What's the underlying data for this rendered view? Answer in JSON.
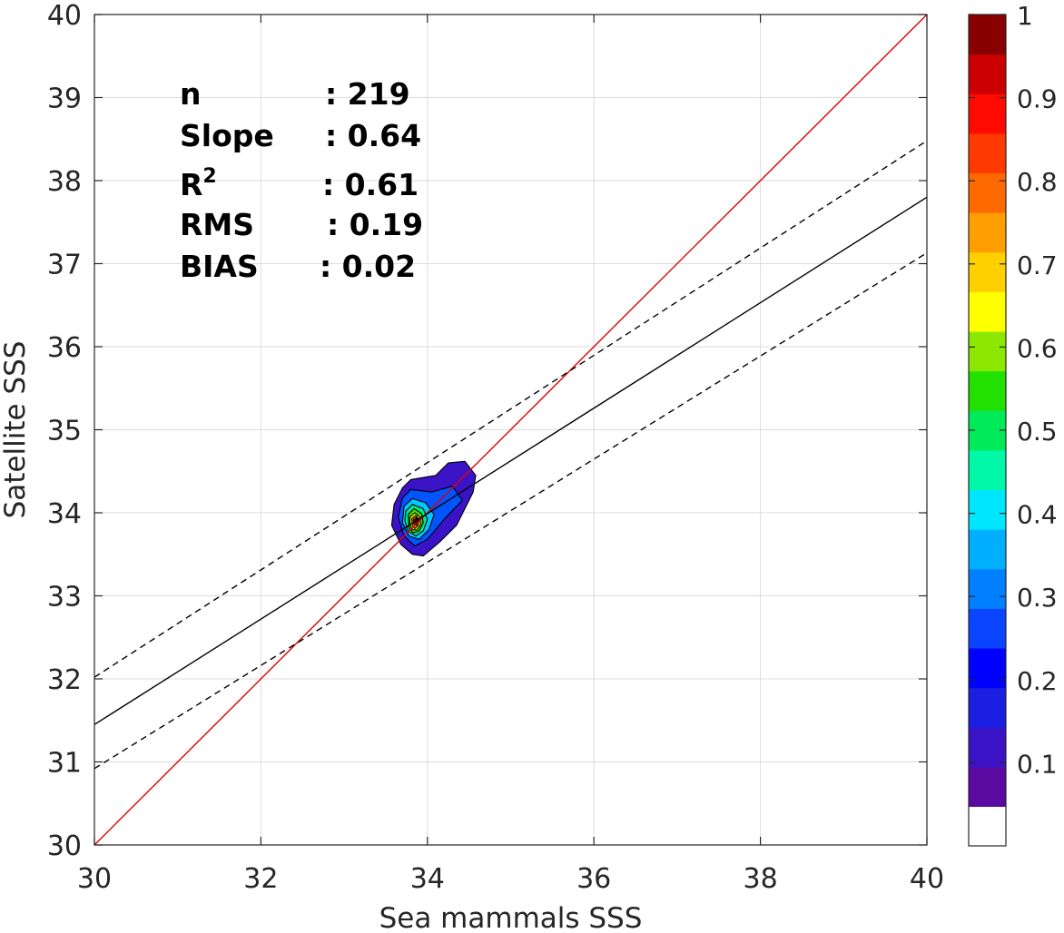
{
  "chart_data": {
    "type": "scatter",
    "subtype": "density-contour",
    "xlabel": "Sea mammals SSS",
    "ylabel": "Satellite SSS",
    "xlim": [
      30,
      40
    ],
    "ylim": [
      30,
      40
    ],
    "x_ticks": [
      "30",
      "32",
      "34",
      "36",
      "38",
      "40"
    ],
    "y_ticks": [
      "30",
      "31",
      "32",
      "33",
      "34",
      "35",
      "36",
      "37",
      "38",
      "39",
      "40"
    ],
    "grid": true,
    "stats": {
      "n": {
        "label": "n",
        "value": ": 219"
      },
      "slope": {
        "label": "Slope",
        "value": ": 0.64"
      },
      "r2": {
        "label": "R",
        "sup": "2",
        "value": ": 0.61"
      },
      "rms": {
        "label": "RMS",
        "value": ": 0.19"
      },
      "bias": {
        "label": "BIAS",
        "value": ": 0.02"
      }
    },
    "lines": [
      {
        "name": "",
        "style": "solid-red",
        "color": "#e00000",
        "points": [
          [
            30,
            30
          ],
          [
            40,
            40
          ]
        ]
      },
      {
        "name": "",
        "style": "solid-black",
        "color": "#000000",
        "points": [
          [
            30,
            31.45
          ],
          [
            40,
            37.8
          ]
        ]
      },
      {
        "name": "",
        "style": "dashed-black",
        "color": "#000000",
        "points": [
          [
            30,
            32.02
          ],
          [
            40,
            38.48
          ]
        ]
      },
      {
        "name": "",
        "style": "dashed-black",
        "color": "#000000",
        "points": [
          [
            30,
            30.92
          ],
          [
            40,
            37.13
          ]
        ]
      }
    ],
    "density_peak": {
      "x": 33.87,
      "y": 33.9
    },
    "density_levels": [
      {
        "level": 0.05,
        "color": "#3a13c7",
        "polygon": [
          [
            33.7,
            34.3
          ],
          [
            33.8,
            34.4
          ],
          [
            34.1,
            34.45
          ],
          [
            34.25,
            34.6
          ],
          [
            34.45,
            34.62
          ],
          [
            34.58,
            34.45
          ],
          [
            34.55,
            34.25
          ],
          [
            34.45,
            34.05
          ],
          [
            34.35,
            33.85
          ],
          [
            34.15,
            33.65
          ],
          [
            33.95,
            33.48
          ],
          [
            33.82,
            33.5
          ],
          [
            33.68,
            33.62
          ],
          [
            33.57,
            33.85
          ],
          [
            33.6,
            34.1
          ]
        ]
      },
      {
        "level": 0.2,
        "color": "#0055ff",
        "polygon": [
          [
            33.7,
            34.18
          ],
          [
            33.8,
            34.28
          ],
          [
            34.05,
            34.25
          ],
          [
            34.3,
            34.32
          ],
          [
            34.42,
            34.15
          ],
          [
            34.2,
            33.92
          ],
          [
            34.0,
            33.68
          ],
          [
            33.85,
            33.6
          ],
          [
            33.72,
            33.72
          ],
          [
            33.65,
            33.95
          ]
        ]
      },
      {
        "level": 0.35,
        "color": "#00c8ff",
        "polygon": [
          [
            33.72,
            34.08
          ],
          [
            33.82,
            34.17
          ],
          [
            33.98,
            34.12
          ],
          [
            34.08,
            33.98
          ],
          [
            34.02,
            33.8
          ],
          [
            33.9,
            33.68
          ],
          [
            33.78,
            33.72
          ],
          [
            33.7,
            33.88
          ]
        ]
      },
      {
        "level": 0.45,
        "color": "#00e890",
        "polygon": [
          [
            33.74,
            34.02
          ],
          [
            33.82,
            34.1
          ],
          [
            33.95,
            34.05
          ],
          [
            34.0,
            33.92
          ],
          [
            33.95,
            33.78
          ],
          [
            33.86,
            33.72
          ],
          [
            33.77,
            33.78
          ],
          [
            33.73,
            33.9
          ]
        ]
      },
      {
        "level": 0.55,
        "color": "#44dd00",
        "polygon": [
          [
            33.77,
            33.98
          ],
          [
            33.84,
            34.05
          ],
          [
            33.93,
            33.99
          ],
          [
            33.95,
            33.88
          ],
          [
            33.9,
            33.78
          ],
          [
            33.83,
            33.76
          ],
          [
            33.78,
            33.82
          ]
        ]
      },
      {
        "level": 0.65,
        "color": "#ffff00",
        "polygon": [
          [
            33.79,
            33.95
          ],
          [
            33.85,
            34.0
          ],
          [
            33.91,
            33.95
          ],
          [
            33.92,
            33.86
          ],
          [
            33.87,
            33.79
          ],
          [
            33.82,
            33.8
          ],
          [
            33.79,
            33.86
          ]
        ]
      },
      {
        "level": 0.75,
        "color": "#ffaa00",
        "polygon": [
          [
            33.81,
            33.93
          ],
          [
            33.86,
            33.97
          ],
          [
            33.9,
            33.92
          ],
          [
            33.89,
            33.85
          ],
          [
            33.85,
            33.81
          ],
          [
            33.82,
            33.85
          ]
        ]
      },
      {
        "level": 0.85,
        "color": "#ff3300",
        "polygon": [
          [
            33.83,
            33.92
          ],
          [
            33.87,
            33.95
          ],
          [
            33.89,
            33.9
          ],
          [
            33.87,
            33.85
          ],
          [
            33.84,
            33.86
          ]
        ]
      },
      {
        "level": 0.95,
        "color": "#b00000",
        "polygon": [
          [
            33.85,
            33.91
          ],
          [
            33.87,
            33.93
          ],
          [
            33.88,
            33.89
          ],
          [
            33.86,
            33.87
          ]
        ]
      }
    ],
    "colorbar": {
      "range": [
        0,
        1
      ],
      "tick_labels": [
        "0.1",
        "0.2",
        "0.3",
        "0.4",
        "0.5",
        "0.6",
        "0.7",
        "0.8",
        "0.9",
        "1"
      ],
      "colors": [
        "#ffffff",
        "#5a0aa0",
        "#3a13c7",
        "#1a1ee0",
        "#0000ff",
        "#0a44ff",
        "#0080ff",
        "#00b0ff",
        "#00e6ff",
        "#00f8a8",
        "#00ea5a",
        "#22e000",
        "#8ce800",
        "#ffff00",
        "#ffd000",
        "#ff9e00",
        "#ff6a00",
        "#ff3a00",
        "#ff0a00",
        "#cc0000",
        "#880000"
      ]
    }
  }
}
